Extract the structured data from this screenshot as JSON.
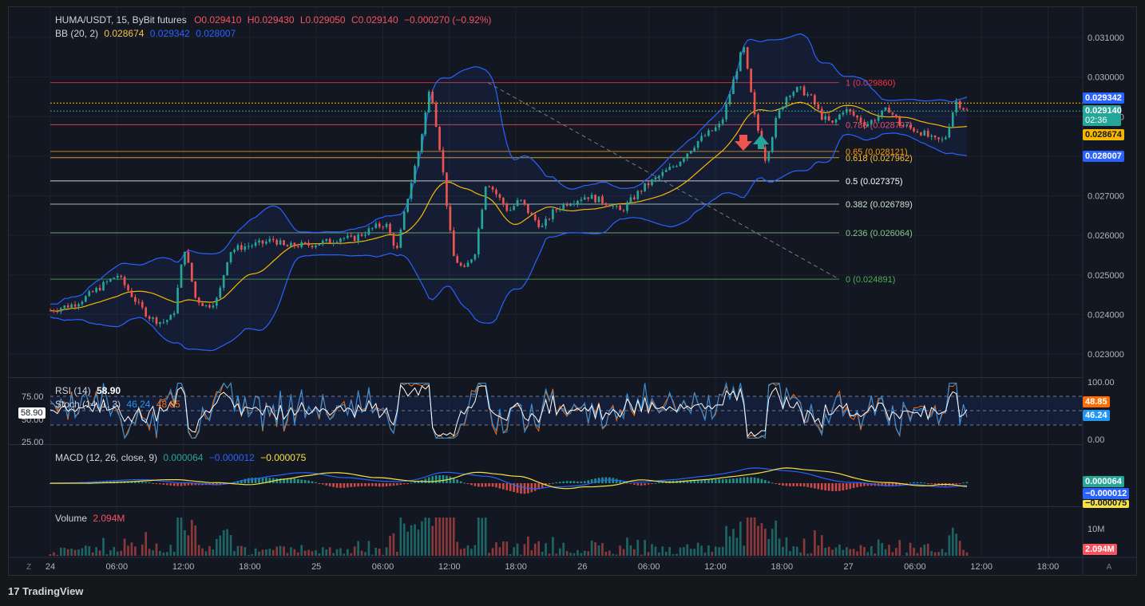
{
  "header": {
    "symbol": "HUMA/USDT, 15, ByBit futures",
    "ohlc": {
      "o": "O0.029410",
      "h": "H0.029430",
      "l": "L0.029050",
      "c": "C0.029140",
      "chg": "−0.000270 (−0.92%)"
    },
    "bb_label": "BB (20, 2)",
    "bb_values": {
      "basis": "0.028674",
      "upper": "0.029342",
      "lower": "0.028007"
    }
  },
  "rsi": {
    "label": "RSI (14)",
    "value": "58.90",
    "stoch_label": "Stoch (14, 1, 3)",
    "stoch_k": "46.24",
    "stoch_d": "48.85",
    "tick_75": "75.00",
    "tick_50": "50.00",
    "tick_25": "25.00",
    "cursor_value": "58.90"
  },
  "macd": {
    "label": "MACD (12, 26, close, 9)",
    "hist": "0.000064",
    "macd": "−0.000012",
    "signal": "−0.000075"
  },
  "volume": {
    "label": "Volume",
    "value": "2.094M",
    "tick": "10M"
  },
  "price_axis": {
    "ticks": [
      "0.031000",
      "0.030000",
      "0.029000",
      "0.028000",
      "0.027000",
      "0.026000",
      "0.025000",
      "0.024000",
      "0.023000"
    ],
    "tags": {
      "upper": "0.029342",
      "last": "0.029140",
      "countdown": "02:36",
      "basis": "0.028674",
      "lower": "0.028007"
    }
  },
  "osc_axis": {
    "t100": "100.00",
    "t0": "0.00",
    "tag_d": "48.85",
    "tag_k": "46.24"
  },
  "macd_axis": {
    "hist": "0.000064",
    "macd": "−0.000012",
    "signal": "−0.000075"
  },
  "vol_axis": {
    "tag": "2.094M"
  },
  "time_axis": {
    "labels": [
      "24",
      "06:00",
      "12:00",
      "18:00",
      "25",
      "06:00",
      "12:00",
      "18:00",
      "26",
      "06:00",
      "12:00",
      "18:00",
      "27",
      "06:00",
      "12:00",
      "18:00"
    ],
    "left_btn": "Z",
    "right_btn": "A"
  },
  "fib": [
    {
      "label": "1 (0.029860)",
      "price": 0.02986,
      "color": "#f23645"
    },
    {
      "label": "0.786 (0.028797)",
      "price": 0.028797,
      "color": "#f7525f"
    },
    {
      "label": "0.65 (0.028121)",
      "price": 0.028121,
      "color": "#ff9800"
    },
    {
      "label": "0.618 (0.027962)",
      "price": 0.027962,
      "color": "#fbc02d"
    },
    {
      "label": "0.5 (0.027375)",
      "price": 0.027375,
      "color": "#ffffff"
    },
    {
      "label": "0.382 (0.026789)",
      "price": 0.026789,
      "color": "#c8e6c9"
    },
    {
      "label": "0.236 (0.026064)",
      "price": 0.026064,
      "color": "#81c784"
    },
    {
      "label": "0 (0.024891)",
      "price": 0.024891,
      "color": "#4caf50"
    }
  ],
  "chart_data": {
    "type": "candlestick",
    "title": "HUMA/USDT, 15, ByBit futures",
    "ylim": [
      0.0223,
      0.0318
    ],
    "series": [
      {
        "name": "price_path",
        "values": [
          0.0241,
          0.02418,
          0.02425,
          0.0244,
          0.0246,
          0.0248,
          0.025,
          0.0246,
          0.0242,
          0.0239,
          0.0238,
          0.02395,
          0.0257,
          0.0244,
          0.0242,
          0.0244,
          0.0256,
          0.0257,
          0.02575,
          0.0258,
          0.0259,
          0.0257,
          0.02575,
          0.02575,
          0.0258,
          0.02585,
          0.02595,
          0.0259,
          0.02605,
          0.0262,
          0.0263,
          0.0256,
          0.027,
          0.0282,
          0.0298,
          0.0279,
          0.0255,
          0.0251,
          0.0256,
          0.0274,
          0.027,
          0.0266,
          0.0269,
          0.0265,
          0.0262,
          0.0266,
          0.0268,
          0.0269,
          0.027,
          0.0269,
          0.0268,
          0.0266,
          0.0269,
          0.0272,
          0.0274,
          0.0276,
          0.0278,
          0.0281,
          0.0284,
          0.0286,
          0.0288,
          0.0298,
          0.0308,
          0.029,
          0.0279,
          0.029,
          0.0296,
          0.0297,
          0.0295,
          0.029,
          0.0288,
          0.0292,
          0.029,
          0.0288,
          0.029,
          0.0292,
          0.0288,
          0.0287,
          0.0286,
          0.0284,
          0.0284,
          0.0294,
          0.02914
        ]
      }
    ]
  }
}
